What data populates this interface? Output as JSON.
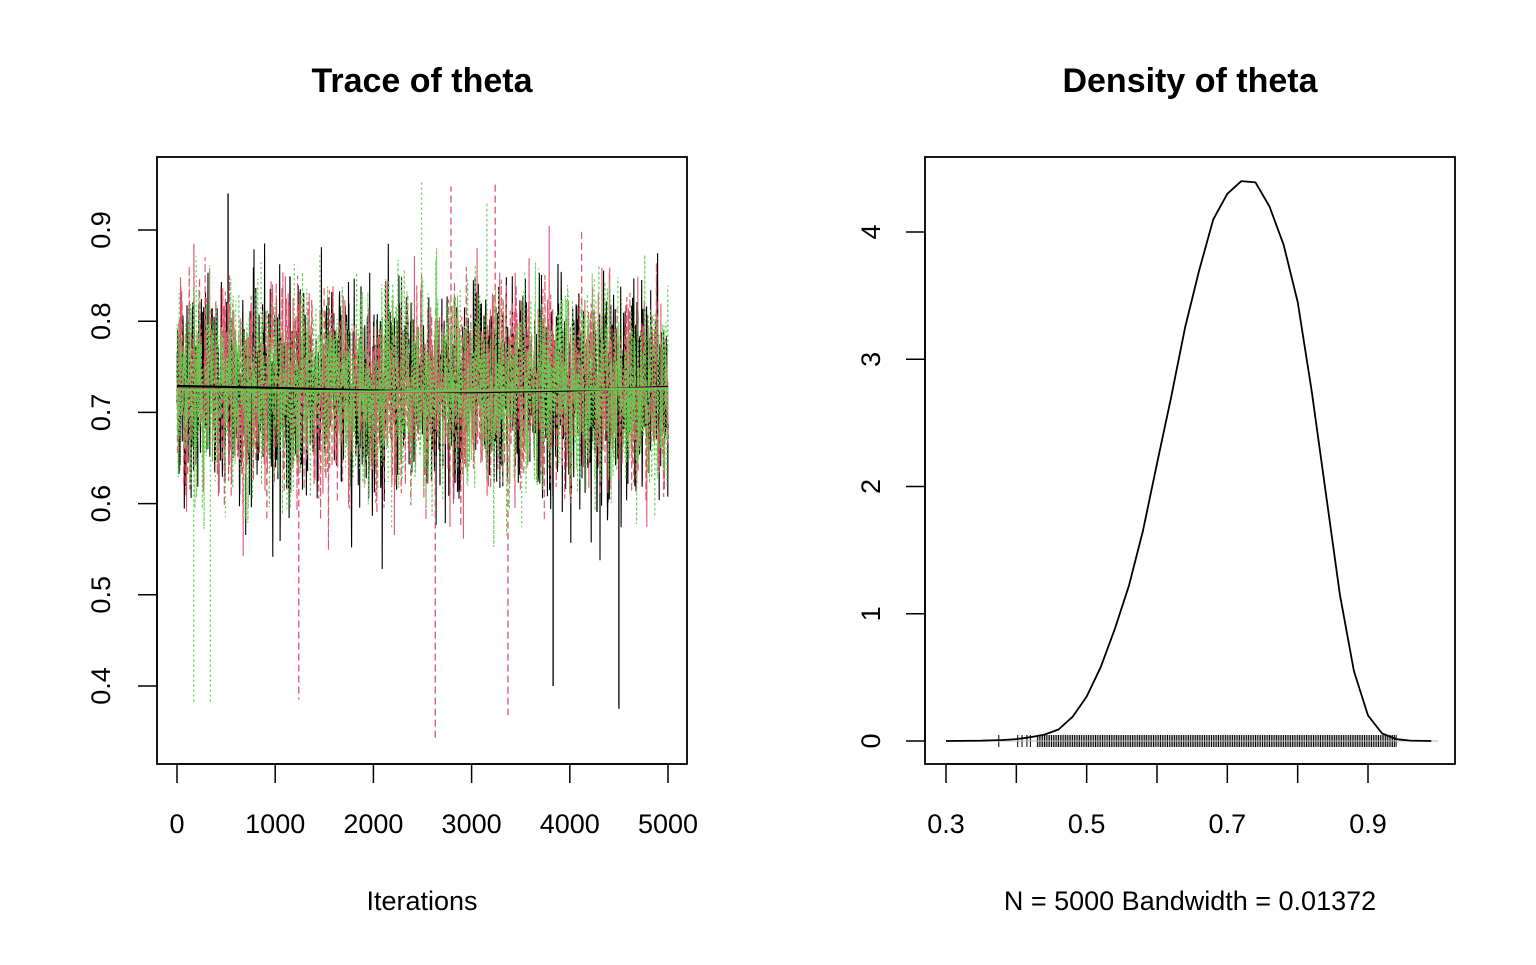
{
  "chart_data": [
    {
      "type": "line",
      "title": "Trace of theta",
      "xlabel": "Iterations",
      "ylabel": "",
      "xlim": [
        0,
        5000
      ],
      "ylim": [
        0.335,
        0.965
      ],
      "xticks": [
        0,
        1000,
        2000,
        3000,
        4000,
        5000
      ],
      "yticks": [
        0.4,
        0.5,
        0.6,
        0.7,
        0.8,
        0.9
      ],
      "xtick_labels": [
        "0",
        "1000",
        "2000",
        "3000",
        "4000",
        "5000"
      ],
      "ytick_labels": [
        "0.4",
        "0.5",
        "0.6",
        "0.7",
        "0.8",
        "0.9"
      ],
      "grid": false,
      "legend": "none",
      "n_iterations": 5000,
      "series": [
        {
          "color": "#000000",
          "line_style": "solid",
          "mean_level": 0.725,
          "extremes": [
            {
              "x": 520,
              "y": 0.94
            },
            {
              "x": 4500,
              "y": 0.375
            },
            {
              "x": 3830,
              "y": 0.4
            }
          ],
          "smooth": [
            {
              "x": 0,
              "y": 0.729
            },
            {
              "x": 1000,
              "y": 0.727
            },
            {
              "x": 2000,
              "y": 0.724
            },
            {
              "x": 3000,
              "y": 0.722
            },
            {
              "x": 4000,
              "y": 0.724
            },
            {
              "x": 5000,
              "y": 0.728
            }
          ]
        },
        {
          "color": "#DF536B",
          "line_style": "dashed",
          "mean_level": 0.725,
          "extremes": [
            {
              "x": 2630,
              "y": 0.34
            },
            {
              "x": 3370,
              "y": 0.368
            },
            {
              "x": 1240,
              "y": 0.385
            },
            {
              "x": 2790,
              "y": 0.948
            },
            {
              "x": 3240,
              "y": 0.95
            }
          ],
          "smooth": [
            {
              "x": 0,
              "y": 0.726
            },
            {
              "x": 1000,
              "y": 0.724
            },
            {
              "x": 2000,
              "y": 0.722
            },
            {
              "x": 3000,
              "y": 0.723
            },
            {
              "x": 4000,
              "y": 0.725
            },
            {
              "x": 5000,
              "y": 0.727
            }
          ]
        },
        {
          "color": "#61D04F",
          "line_style": "dotted",
          "mean_level": 0.725,
          "extremes": [
            {
              "x": 2490,
              "y": 0.955
            },
            {
              "x": 170,
              "y": 0.38
            },
            {
              "x": 340,
              "y": 0.383
            }
          ],
          "smooth": [
            {
              "x": 0,
              "y": 0.725
            },
            {
              "x": 1000,
              "y": 0.724
            },
            {
              "x": 2000,
              "y": 0.723
            },
            {
              "x": 3000,
              "y": 0.724
            },
            {
              "x": 4000,
              "y": 0.725
            },
            {
              "x": 5000,
              "y": 0.726
            }
          ]
        }
      ]
    },
    {
      "type": "line",
      "title": "Density of theta",
      "xlabel": "N = 5000   Bandwidth = 0.01372",
      "ylabel": "",
      "xlim": [
        0.27,
        1.02
      ],
      "ylim": [
        -0.17,
        4.6
      ],
      "xticks": [
        0.3,
        0.4,
        0.5,
        0.6,
        0.7,
        0.8,
        0.9
      ],
      "xtick_labels": [
        "0.3",
        "",
        "0.5",
        "",
        "0.7",
        "",
        "0.9"
      ],
      "yticks": [
        0,
        1,
        2,
        3,
        4
      ],
      "ytick_labels": [
        "0",
        "1",
        "2",
        "3",
        "4"
      ],
      "grid": false,
      "legend": "none",
      "density_curve": {
        "x": [
          0.3,
          0.35,
          0.38,
          0.4,
          0.42,
          0.44,
          0.46,
          0.48,
          0.5,
          0.52,
          0.54,
          0.56,
          0.58,
          0.6,
          0.62,
          0.64,
          0.66,
          0.68,
          0.7,
          0.72,
          0.74,
          0.76,
          0.78,
          0.8,
          0.82,
          0.84,
          0.86,
          0.88,
          0.9,
          0.92,
          0.94,
          0.96,
          0.99
        ],
        "y": [
          0.0,
          0.002,
          0.008,
          0.015,
          0.03,
          0.05,
          0.09,
          0.19,
          0.35,
          0.58,
          0.88,
          1.22,
          1.65,
          2.18,
          2.7,
          3.25,
          3.7,
          4.1,
          4.3,
          4.4,
          4.39,
          4.2,
          3.9,
          3.45,
          2.75,
          1.95,
          1.15,
          0.55,
          0.2,
          0.06,
          0.015,
          0.003,
          0.0
        ]
      },
      "rug": {
        "range": [
          0.375,
          0.94
        ],
        "isolated": [
          0.375,
          0.402,
          0.408,
          0.415,
          0.42
        ]
      }
    }
  ]
}
